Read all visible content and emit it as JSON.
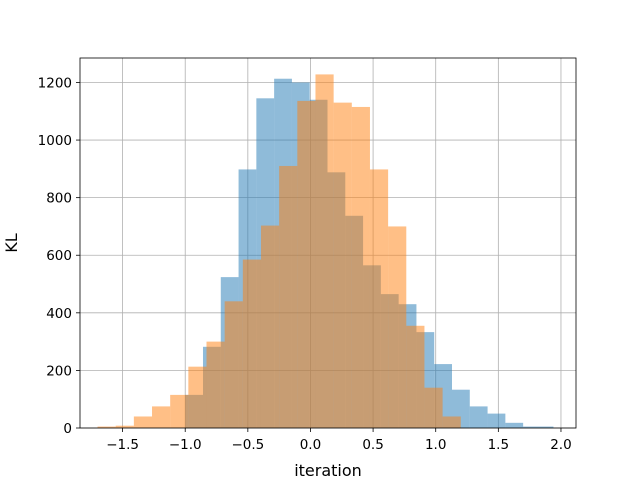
{
  "chart_data": {
    "type": "bar",
    "xlabel": "iteration",
    "ylabel": "KL",
    "xlim": [
      -1.84,
      2.12
    ],
    "ylim": [
      0,
      1285
    ],
    "xticks": [
      -1.5,
      -1.0,
      -0.5,
      0.0,
      0.5,
      1.0,
      1.5,
      2.0
    ],
    "xtick_labels": [
      "−1.5",
      "−1.0",
      "−0.5",
      "0.0",
      "0.5",
      "1.0",
      "1.5",
      "2.0"
    ],
    "yticks": [
      0,
      200,
      400,
      600,
      800,
      1000,
      1200
    ],
    "ytick_labels": [
      "0",
      "200",
      "400",
      "600",
      "800",
      "1000",
      "1200"
    ],
    "grid": true,
    "series": [
      {
        "color": "#1f77b4",
        "alpha": 0.5,
        "bin_edges": [
          -1.0,
          -0.858,
          -0.716,
          -0.574,
          -0.432,
          -0.29,
          -0.148,
          -0.006,
          0.136,
          0.278,
          0.42,
          0.562,
          0.704,
          0.846,
          0.988,
          1.13,
          1.272,
          1.414,
          1.556,
          1.698,
          1.94
        ],
        "counts": [
          115,
          282,
          524,
          898,
          1145,
          1213,
          1200,
          1140,
          888,
          737,
          565,
          465,
          430,
          333,
          222,
          133,
          75,
          50,
          18,
          5
        ]
      },
      {
        "color": "#ff7f0e",
        "alpha": 0.5,
        "bin_edges": [
          -1.7,
          -1.555,
          -1.41,
          -1.265,
          -1.12,
          -0.975,
          -0.83,
          -0.685,
          -0.54,
          -0.395,
          -0.25,
          -0.105,
          0.04,
          0.185,
          0.33,
          0.475,
          0.62,
          0.765,
          0.91,
          1.055,
          1.2
        ],
        "counts": [
          5,
          8,
          40,
          75,
          115,
          213,
          300,
          440,
          585,
          703,
          910,
          1136,
          1228,
          1130,
          1115,
          898,
          700,
          355,
          140,
          40
        ]
      }
    ]
  }
}
